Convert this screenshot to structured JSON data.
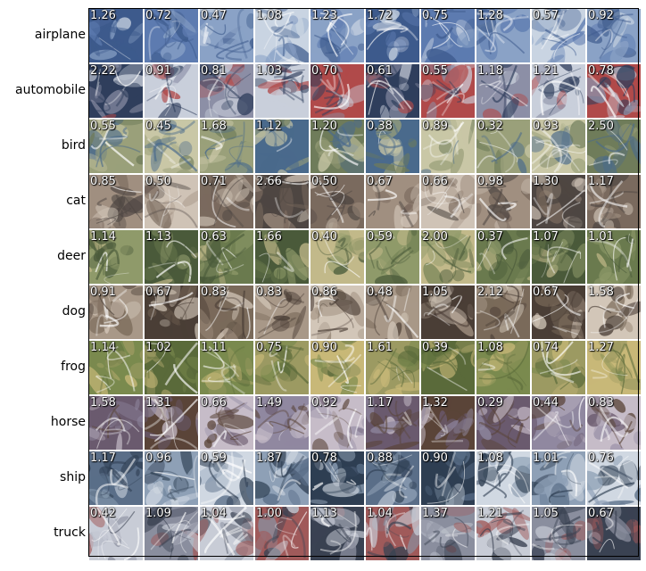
{
  "chart_data": {
    "type": "heatmap",
    "rows": [
      "airplane",
      "automobile",
      "bird",
      "cat",
      "deer",
      "dog",
      "frog",
      "horse",
      "ship",
      "truck"
    ],
    "columns": 10,
    "cell_values": [
      [
        "1.26",
        "0.72",
        "0.47",
        "1.08",
        "1.23",
        "1.72",
        "0.75",
        "1.28",
        "0.57",
        "0.92"
      ],
      [
        "2.22",
        "0.91",
        "0.81",
        "1.03",
        "0.70",
        "0.61",
        "0.55",
        "1.18",
        "1.21",
        "0.78"
      ],
      [
        "0.55",
        "0.45",
        "1.68",
        "1.12",
        "1.20",
        "0.38",
        "0.89",
        "0.32",
        "0.93",
        "2.50"
      ],
      [
        "0.85",
        "0.50",
        "0.71",
        "2.66",
        "0.50",
        "0.67",
        "0.66",
        "0.98",
        "1.30",
        "1.17"
      ],
      [
        "1.14",
        "1.13",
        "0.63",
        "1.66",
        "0.40",
        "0.59",
        "2.00",
        "0.37",
        "1.07",
        "1.01"
      ],
      [
        "0.91",
        "0.67",
        "0.83",
        "0.83",
        "0.86",
        "0.48",
        "1.05",
        "2.12",
        "0.67",
        "1.58"
      ],
      [
        "1.14",
        "1.02",
        "1.11",
        "0.75",
        "0.90",
        "1.61",
        "0.39",
        "1.08",
        "0.74",
        "1.27"
      ],
      [
        "1.58",
        "1.31",
        "0.66",
        "1.49",
        "0.92",
        "1.17",
        "1.32",
        "0.29",
        "0.44",
        "0.83"
      ],
      [
        "1.17",
        "0.96",
        "0.59",
        "1.87",
        "0.78",
        "0.88",
        "0.90",
        "1.08",
        "1.01",
        "0.76"
      ],
      [
        "0.42",
        "1.09",
        "1.04",
        "1.00",
        "1.13",
        "1.04",
        "1.37",
        "1.21",
        "1.05",
        "0.67"
      ]
    ],
    "row_palettes": {
      "airplane": [
        "#8aa2c6",
        "#5d7bb0",
        "#c9d4e2",
        "#3d5a8c"
      ],
      "automobile": [
        "#8c8fa6",
        "#b04a4a",
        "#c9cfdb",
        "#2f3e5c"
      ],
      "bird": [
        "#9aa07a",
        "#6f7c5a",
        "#c9c7a6",
        "#4a6a8c"
      ],
      "cat": [
        "#a08f80",
        "#7a6a5e",
        "#cfc3b6",
        "#4e4642"
      ],
      "deer": [
        "#8f9a6a",
        "#6a7a4e",
        "#c2b98a",
        "#4a5a3a"
      ],
      "dog": [
        "#a89888",
        "#7a6a5a",
        "#d2c6b8",
        "#4a3e36"
      ],
      "frog": [
        "#9c9a62",
        "#7a8a4e",
        "#c8b878",
        "#5a6a3a"
      ],
      "horse": [
        "#9088a0",
        "#6a5a6e",
        "#c6bcc8",
        "#5a4438"
      ],
      "ship": [
        "#8ea0b6",
        "#5a6e88",
        "#d0d8e2",
        "#2e3e52"
      ],
      "truck": [
        "#8a8e9e",
        "#a05a5a",
        "#c8ccd6",
        "#3a4252"
      ]
    }
  }
}
